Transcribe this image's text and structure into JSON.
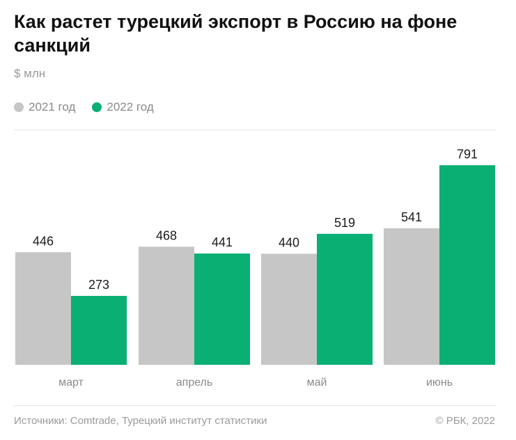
{
  "header": {
    "title": "Как растет турецкий экспорт в Россию на фоне санкций",
    "unit": "$ млн"
  },
  "legend": [
    {
      "label": "2021 год",
      "color": "#c6c6c6"
    },
    {
      "label": "2022 год",
      "color": "#0aaf73"
    }
  ],
  "footer": {
    "source": "Источники: Comtrade, Турецкий институт статистики",
    "copyright": "© РБК, 2022"
  },
  "chart_data": {
    "type": "bar",
    "title": "Как растет турецкий экспорт в Россию на фоне санкций",
    "ylabel": "$ млн",
    "xlabel": "",
    "categories": [
      "март",
      "апрель",
      "май",
      "июнь"
    ],
    "series": [
      {
        "name": "2021 год",
        "values": [
          446,
          468,
          440,
          541
        ],
        "color": "#c6c6c6"
      },
      {
        "name": "2022 год",
        "values": [
          273,
          441,
          519,
          791
        ],
        "color": "#0aaf73"
      }
    ],
    "ylim": [
      0,
      800
    ],
    "grid": false,
    "legend_position": "top-left"
  }
}
